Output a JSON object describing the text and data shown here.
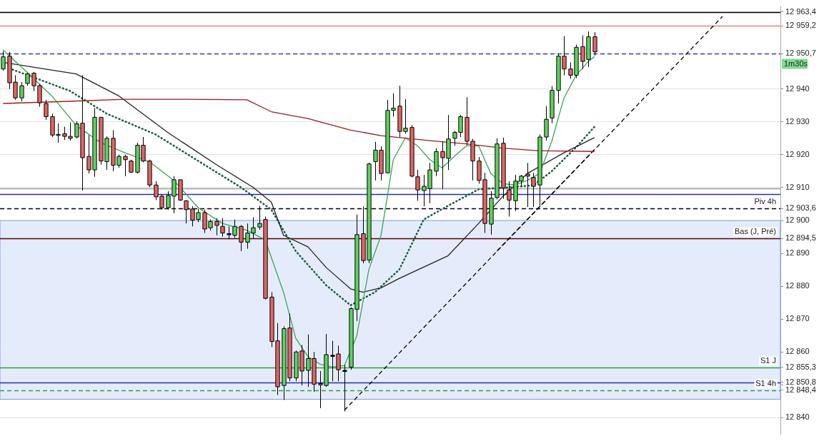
{
  "chart_data": {
    "type": "candlestick",
    "categories": [
      null,
      null,
      null,
      null,
      null,
      null,
      null,
      null,
      null,
      null,
      null,
      null,
      null,
      null,
      null,
      null,
      null,
      null,
      null,
      null,
      null,
      null,
      null,
      null,
      null,
      null,
      null,
      null,
      null,
      null,
      null,
      null,
      null,
      null,
      null,
      null,
      null,
      null,
      null,
      null,
      null,
      null,
      null,
      null,
      null,
      null,
      null,
      null,
      null,
      null,
      null,
      null,
      null,
      null,
      null,
      null,
      null,
      null,
      null,
      null,
      null,
      null,
      null,
      null,
      null,
      null,
      null,
      null,
      null,
      null,
      null,
      null,
      null,
      null,
      null,
      null,
      null,
      null,
      null,
      null,
      null,
      null,
      null,
      null,
      null,
      null,
      null,
      null,
      null,
      null,
      null,
      null,
      null,
      null,
      null,
      null,
      null,
      null,
      null,
      null,
      null,
      null,
      null,
      null,
      null,
      null,
      null,
      null,
      null,
      null,
      null,
      null,
      null,
      null,
      null,
      null,
      null,
      null,
      null,
      null,
      null,
      null,
      null,
      null,
      null,
      null,
      null,
      null
    ],
    "ohlc": [
      [
        12946.1,
        12951.5,
        12945.6,
        12949.8
      ],
      [
        12950.0,
        12951.3,
        12940.0,
        12941.9
      ],
      [
        12942.1,
        12944.2,
        12936.7,
        12937.3
      ],
      [
        12937.3,
        12942.1,
        12936.2,
        12941.0
      ],
      [
        12941.7,
        12945.0,
        12941.0,
        12944.6
      ],
      [
        12944.8,
        12945.2,
        12939.4,
        12941.0
      ],
      [
        12941.0,
        12941.5,
        12934.6,
        12935.8
      ],
      [
        12935.6,
        12936.7,
        12930.6,
        12931.6
      ],
      [
        12931.6,
        12932.5,
        12925.4,
        12926.0
      ],
      [
        12926.0,
        12929.6,
        12923.7,
        12926.2
      ],
      [
        12926.4,
        12928.5,
        12924.5,
        12925.6
      ],
      [
        12925.6,
        12929.8,
        12924.3,
        12925.0
      ],
      [
        12925.4,
        12930.2,
        12925.0,
        12929.4
      ],
      [
        12929.6,
        12944.2,
        12909.1,
        12919.1
      ],
      [
        12919.5,
        12926.0,
        12914.3,
        12915.4
      ],
      [
        12915.4,
        12934.2,
        12913.3,
        12931.4
      ],
      [
        12931.4,
        12931.4,
        12917.0,
        12918.1
      ],
      [
        12917.9,
        12925.6,
        12915.4,
        12925.0
      ],
      [
        12925.0,
        12927.5,
        12915.0,
        12916.8
      ],
      [
        12916.8,
        12920.0,
        12916.0,
        12919.5
      ],
      [
        12919.5,
        12920.0,
        12913.5,
        12918.5
      ],
      [
        12918.1,
        12918.5,
        12914.5,
        12914.7
      ],
      [
        12914.7,
        12923.7,
        12914.3,
        12922.9
      ],
      [
        12922.9,
        12925.4,
        12917.7,
        12918.1
      ],
      [
        12918.1,
        12918.5,
        12910.1,
        12910.8
      ],
      [
        12910.8,
        12912.0,
        12906.2,
        12907.2
      ],
      [
        12907.4,
        12908.0,
        12903.3,
        12903.9
      ],
      [
        12903.9,
        12908.9,
        12903.3,
        12907.6
      ],
      [
        12907.4,
        12913.5,
        12902.2,
        12912.4
      ],
      [
        12912.4,
        12912.4,
        12906.0,
        12906.2
      ],
      [
        12906.0,
        12906.2,
        12899.1,
        12903.3
      ],
      [
        12903.5,
        12904.3,
        12898.2,
        12900.1
      ],
      [
        12900.3,
        12903.5,
        12899.5,
        12902.4
      ],
      [
        12902.4,
        12903.3,
        12896.2,
        12897.4
      ],
      [
        12897.8,
        12900.3,
        12897.0,
        12899.7
      ],
      [
        12899.7,
        12900.7,
        12895.5,
        12898.5
      ],
      [
        12898.2,
        12900.7,
        12895.1,
        12896.2
      ],
      [
        12896.0,
        12898.2,
        12894.3,
        12896.0
      ],
      [
        12895.5,
        12900.3,
        12894.7,
        12898.2
      ],
      [
        12898.2,
        12898.6,
        12890.7,
        12893.4
      ],
      [
        12893.4,
        12899.1,
        12891.4,
        12896.2
      ],
      [
        12896.2,
        12901.0,
        12894.5,
        12897.8
      ],
      [
        12898.0,
        12904.5,
        12897.2,
        12899.1
      ],
      [
        12900.3,
        12901.2,
        12876.0,
        12876.3
      ],
      [
        12876.7,
        12878.2,
        12861.5,
        12863.2
      ],
      [
        12863.4,
        12868.8,
        12846.9,
        12849.4
      ],
      [
        12849.8,
        12867.8,
        12845.4,
        12867.1
      ],
      [
        12867.3,
        12871.7,
        12851.1,
        12852.1
      ],
      [
        12852.1,
        12860.4,
        12851.1,
        12860.0
      ],
      [
        12860.3,
        12862.1,
        12849.8,
        12854.2
      ],
      [
        12854.4,
        12865.3,
        12849.4,
        12858.0
      ],
      [
        12858.0,
        12860.0,
        12847.9,
        12850.2
      ],
      [
        12850.4,
        12854.2,
        12842.9,
        12850.0
      ],
      [
        12849.8,
        12865.5,
        12849.4,
        12859.2
      ],
      [
        12859.0,
        12863.4,
        12851.1,
        12859.0
      ],
      [
        12859.4,
        12861.9,
        12851.1,
        12854.6
      ],
      [
        12854.4,
        12856.1,
        12841.9,
        12854.4
      ],
      [
        12855.4,
        12873.6,
        12854.6,
        12873.2
      ],
      [
        12873.0,
        12901.8,
        12869.4,
        12895.7
      ],
      [
        12896.0,
        12904.3,
        12887.0,
        12887.8
      ],
      [
        12888.0,
        12917.6,
        12887.0,
        12917.2
      ],
      [
        12917.9,
        12923.9,
        12912.2,
        12921.4
      ],
      [
        12921.4,
        12922.5,
        12912.2,
        12914.3
      ],
      [
        12914.5,
        12936.7,
        12914.3,
        12933.5
      ],
      [
        12933.5,
        12938.7,
        12931.6,
        12934.2
      ],
      [
        12934.8,
        12941.0,
        12925.4,
        12927.1
      ],
      [
        12927.1,
        12936.9,
        12926.4,
        12928.1
      ],
      [
        12928.3,
        12929.0,
        12913.1,
        12913.5
      ],
      [
        12913.3,
        12915.4,
        12906.0,
        12909.3
      ],
      [
        12909.1,
        12913.9,
        12904.3,
        12910.4
      ],
      [
        12909.7,
        12917.5,
        12905.3,
        12915.4
      ],
      [
        12915.0,
        12922.0,
        12913.5,
        12921.0
      ],
      [
        12921.0,
        12924.1,
        12909.5,
        12919.1
      ],
      [
        12918.9,
        12932.1,
        12915.4,
        12924.8
      ],
      [
        12925.0,
        12927.3,
        12922.7,
        12926.8
      ],
      [
        12926.8,
        12932.1,
        12925.4,
        12931.6
      ],
      [
        12931.4,
        12937.5,
        12922.9,
        12924.1
      ],
      [
        12924.1,
        12924.8,
        12912.2,
        12918.1
      ],
      [
        12918.1,
        12919.3,
        12911.2,
        12912.2
      ],
      [
        12912.4,
        12914.5,
        12896.2,
        12899.1
      ],
      [
        12898.9,
        12908.9,
        12895.7,
        12906.8
      ],
      [
        12907.0,
        12925.0,
        12906.4,
        12923.3
      ],
      [
        12923.5,
        12925.2,
        12906.6,
        12909.9
      ],
      [
        12909.3,
        12912.0,
        12901.2,
        12906.2
      ],
      [
        12906.0,
        12913.9,
        12902.9,
        12912.0
      ],
      [
        12912.0,
        12913.9,
        12910.4,
        12913.5
      ],
      [
        12914.1,
        12917.5,
        12904.1,
        12913.5
      ],
      [
        12913.1,
        12914.5,
        12904.1,
        12910.4
      ],
      [
        12910.8,
        12926.2,
        12904.5,
        12925.4
      ],
      [
        12925.4,
        12934.8,
        12924.3,
        12930.8
      ],
      [
        12931.2,
        12940.9,
        12929.6,
        12939.6
      ],
      [
        12939.6,
        12950.6,
        12935.6,
        12950.0
      ],
      [
        12950.0,
        12956.1,
        12944.2,
        12946.1
      ],
      [
        12946.1,
        12948.1,
        12943.1,
        12944.2
      ],
      [
        12944.2,
        12953.5,
        12943.3,
        12952.7
      ],
      [
        12952.9,
        12956.3,
        12946.1,
        12948.4
      ],
      [
        12949.0,
        12957.5,
        12946.7,
        12955.9
      ],
      [
        12955.9,
        12957.3,
        12950.2,
        12951.3
      ],
      null,
      null,
      null,
      null,
      null,
      null,
      null,
      null,
      null,
      null,
      null,
      null,
      null,
      null,
      null,
      null,
      null,
      null,
      null,
      null,
      null,
      null,
      null,
      null,
      null,
      null,
      null,
      null,
      null,
      null
    ],
    "colors": [
      "#5fd35f",
      "#e06666",
      "#e06666",
      "#5fd35f",
      "#5fd35f",
      "#e06666",
      "#e06666",
      "#e06666",
      "#e06666",
      "#5fd35f",
      "#e06666",
      "#e06666",
      "#5fd35f",
      "#e06666",
      "#e06666",
      "#5fd35f",
      "#e06666",
      "#5fd35f",
      "#e06666",
      "#5fd35f",
      "#e06666",
      "#e06666",
      "#5fd35f",
      "#e06666",
      "#e06666",
      "#e06666",
      "#e06666",
      "#5fd35f",
      "#5fd35f",
      "#e06666",
      "#e06666",
      "#e06666",
      "#5fd35f",
      "#e06666",
      "#5fd35f",
      "#e06666",
      "#e06666",
      "#000000",
      "#5fd35f",
      "#e06666",
      "#5fd35f",
      "#5fd35f",
      "#5fd35f",
      "#e06666",
      "#e06666",
      "#e06666",
      "#5fd35f",
      "#e06666",
      "#5fd35f",
      "#e06666",
      "#5fd35f",
      "#e06666",
      "#e06666",
      "#5fd35f",
      "#000000",
      "#e06666",
      "#000000",
      "#5fd35f",
      "#5fd35f",
      "#e06666",
      "#5fd35f",
      "#5fd35f",
      "#e06666",
      "#5fd35f",
      "#5fd35f",
      "#e06666",
      "#5fd35f",
      "#e06666",
      "#e06666",
      "#5fd35f",
      "#5fd35f",
      "#5fd35f",
      "#e06666",
      "#5fd35f",
      "#5fd35f",
      "#5fd35f",
      "#e06666",
      "#e06666",
      "#e06666",
      "#e06666",
      "#5fd35f",
      "#5fd35f",
      "#e06666",
      "#e06666",
      "#5fd35f",
      "#5fd35f",
      "#e06666",
      "#e06666",
      "#5fd35f",
      "#5fd35f",
      "#5fd35f",
      "#5fd35f",
      "#e06666",
      "#e06666",
      "#5fd35f",
      "#e06666",
      "#5fd35f",
      "#e06666",
      null,
      null,
      null,
      null,
      null,
      null,
      null,
      null,
      null,
      null,
      null,
      null,
      null,
      null,
      null,
      null,
      null,
      null,
      null,
      null,
      null,
      null,
      null,
      null,
      null,
      null,
      null,
      null,
      null,
      null
    ],
    "series": [
      {
        "type": "line",
        "color": "#9b1c1c",
        "values": [
          12935.6,
          null,
          null,
          null,
          null,
          null,
          null,
          null,
          null,
          null,
          12936.2,
          null,
          null,
          null,
          null,
          null,
          null,
          null,
          null,
          null,
          12936.9,
          null,
          null,
          null,
          null,
          null,
          null,
          null,
          null,
          null,
          12936.9,
          null,
          null,
          null,
          null,
          null,
          null,
          null,
          null,
          null,
          12936.7,
          null,
          null,
          null,
          12933.1,
          null,
          null,
          null,
          null,
          null,
          12931.0,
          null,
          null,
          null,
          null,
          null,
          null,
          12927.5,
          null,
          null,
          null,
          null,
          12925.8,
          null,
          null,
          null,
          null,
          null,
          null,
          null,
          12924.3,
          null,
          null,
          null,
          null,
          null,
          12923.3,
          null,
          null,
          null,
          null,
          null,
          12922.0,
          null,
          null,
          null,
          null,
          null,
          12921.2,
          null,
          null,
          null,
          null,
          null,
          null,
          null,
          null,
          12921.0,
          null,
          null,
          null,
          null,
          null,
          null,
          null,
          null,
          null,
          null,
          null,
          null,
          null,
          null,
          null,
          null,
          null,
          null,
          null,
          null,
          null,
          null,
          null,
          null,
          null,
          null,
          null,
          null,
          null,
          null
        ]
      },
      {
        "type": "line",
        "color": "#3aa655",
        "values": [
          12951.9,
          null,
          null,
          null,
          12945.0,
          null,
          null,
          null,
          12937.9,
          null,
          null,
          null,
          12928.9,
          null,
          null,
          null,
          12923.7,
          null,
          null,
          null,
          12920.6,
          null,
          null,
          null,
          12917.9,
          null,
          null,
          null,
          12912.2,
          null,
          null,
          null,
          12903.9,
          null,
          null,
          null,
          12899.1,
          null,
          null,
          null,
          12897.0,
          null,
          null,
          12894.1,
          null,
          null,
          12878.2,
          null,
          12864.2,
          null,
          12858.6,
          null,
          12856.3,
          null,
          12855.4,
          null,
          12855.9,
          null,
          12864.8,
          null,
          12885.1,
          null,
          12895.5,
          null,
          12918.5,
          null,
          12925.2,
          null,
          12922.7,
          null,
          12918.5,
          null,
          12916.0,
          null,
          12919.5,
          null,
          12922.7,
          null,
          12922.7,
          null,
          12914.3,
          null,
          12911.2,
          null,
          12910.8,
          null,
          12912.2,
          null,
          12914.3,
          null,
          12924.1,
          null,
          12937.3,
          null,
          12944.2,
          null,
          12948.4,
          12949.8,
          null,
          null,
          null,
          null,
          null,
          null,
          null,
          null,
          null,
          null,
          null,
          null,
          null,
          null,
          null,
          null,
          null,
          null,
          null,
          null,
          null,
          null,
          null,
          null,
          null,
          null,
          null,
          null,
          null,
          null
        ]
      },
      {
        "type": "line",
        "color": "#222222",
        "values": [
          12948.1,
          null,
          null,
          null,
          null,
          null,
          null,
          null,
          null,
          null,
          null,
          null,
          12944.6,
          null,
          null,
          null,
          null,
          null,
          null,
          12937.9,
          null,
          null,
          null,
          null,
          null,
          null,
          null,
          12926.8,
          null,
          null,
          null,
          null,
          null,
          null,
          null,
          12917.0,
          null,
          null,
          null,
          null,
          null,
          12910.1,
          null,
          null,
          12905.6,
          null,
          12895.5,
          null,
          null,
          null,
          12892.0,
          null,
          null,
          12885.7,
          null,
          null,
          null,
          12879.2,
          null,
          12878.2,
          null,
          null,
          12879.5,
          null,
          null,
          12882.4,
          null,
          null,
          null,
          null,
          null,
          null,
          null,
          12889.3,
          null,
          null,
          null,
          null,
          12899.1,
          null,
          null,
          null,
          12907.4,
          null,
          null,
          null,
          12914.3,
          null,
          null,
          null,
          null,
          null,
          12920.6,
          null,
          null,
          null,
          null,
          12925.2,
          null,
          null,
          null,
          null,
          null,
          null,
          null,
          null,
          null,
          null,
          null,
          null,
          null,
          null,
          null,
          null,
          null,
          null,
          null,
          null,
          null,
          null,
          null,
          null,
          null,
          null,
          null,
          null,
          null,
          null
        ]
      },
      {
        "type": "line",
        "color": "#1f5c3a",
        "line_style": "dotted",
        "values": [
          null,
          12946.3,
          null,
          null,
          null,
          null,
          null,
          null,
          null,
          null,
          null,
          12939.4,
          null,
          null,
          null,
          null,
          null,
          12932.5,
          null,
          null,
          null,
          null,
          null,
          null,
          null,
          12926.2,
          null,
          null,
          null,
          null,
          null,
          null,
          null,
          12917.0,
          null,
          null,
          null,
          null,
          null,
          12910.1,
          null,
          null,
          null,
          null,
          12903.3,
          null,
          null,
          null,
          12890.7,
          null,
          null,
          null,
          null,
          12880.3,
          null,
          null,
          null,
          12874.2,
          null,
          null,
          null,
          12878.2,
          null,
          null,
          null,
          12885.1,
          null,
          null,
          null,
          12900.3,
          null,
          null,
          null,
          12904.5,
          null,
          null,
          null,
          null,
          12909.5,
          null,
          null,
          null,
          null,
          12910.1,
          null,
          null,
          null,
          12910.7,
          null,
          null,
          12915.0,
          null,
          null,
          null,
          12922.3,
          null,
          null,
          12928.5,
          null,
          null,
          null,
          null,
          null,
          null,
          null,
          null,
          null,
          null,
          null,
          null,
          null,
          null,
          null,
          null,
          null,
          null,
          null,
          null,
          null,
          null,
          null,
          null,
          null,
          null,
          null,
          null,
          null,
          null
        ]
      },
      {
        "type": "line",
        "color": "#000000",
        "line_style": "dashed",
        "values": [
          null,
          null,
          null,
          null,
          null,
          null,
          null,
          null,
          null,
          null,
          null,
          null,
          null,
          null,
          null,
          null,
          null,
          null,
          null,
          null,
          null,
          null,
          null,
          null,
          null,
          null,
          null,
          null,
          null,
          null,
          null,
          null,
          null,
          null,
          null,
          null,
          null,
          null,
          null,
          null,
          null,
          null,
          null,
          null,
          null,
          null,
          null,
          null,
          null,
          null,
          null,
          null,
          null,
          null,
          null,
          null,
          12842.3,
          null,
          null,
          null,
          null,
          null,
          null,
          null,
          null,
          null,
          null,
          null,
          null,
          null,
          null,
          null,
          null,
          null,
          null,
          null,
          null,
          null,
          null,
          null,
          null,
          null,
          null,
          null,
          null,
          null,
          null,
          null,
          null,
          null,
          null,
          null,
          null,
          null,
          null,
          null,
          null,
          null,
          null,
          null,
          null,
          null,
          null,
          null,
          null,
          null,
          null,
          null,
          null,
          null,
          null,
          null,
          null,
          null,
          null,
          null,
          null,
          null,
          12962.1,
          null,
          null,
          null,
          null,
          null,
          null,
          null,
          null,
          null
        ]
      },
      {
        "type": "line",
        "color": "#000000",
        "line_style": "dashed",
        "values": [
          null,
          null,
          null,
          null,
          null,
          null,
          null,
          null,
          null,
          null,
          null,
          null,
          null,
          null,
          null,
          null,
          null,
          null,
          null,
          null,
          null,
          null,
          null,
          null,
          null,
          null,
          null,
          null,
          null,
          null,
          null,
          null,
          null,
          null,
          null,
          null,
          null,
          null,
          null,
          null,
          null,
          null,
          null,
          null,
          null,
          null,
          null,
          null,
          null,
          null,
          null,
          null,
          null,
          null,
          null,
          null,
          null,
          null,
          null,
          null,
          null,
          null,
          null,
          null,
          null,
          null,
          null,
          null,
          null,
          null,
          null,
          null,
          null,
          null,
          null,
          null,
          null,
          null,
          null,
          null,
          null,
          12890.7,
          null,
          null,
          null,
          null,
          null,
          null,
          null,
          null,
          null,
          null,
          null,
          null,
          null,
          null,
          null,
          12921.6,
          null,
          null,
          null,
          null,
          null,
          null,
          null,
          null,
          null,
          null,
          null,
          null,
          null,
          null,
          null,
          null,
          null,
          null,
          null,
          null,
          null,
          null,
          null,
          null,
          null,
          null,
          null,
          null,
          null,
          null
        ]
      }
    ],
    "ylim": [
      12835,
      12965
    ],
    "yticks": [
      {
        "value": 12848.4,
        "label": "12 848,4"
      },
      {
        "value": 12850.8,
        "label": "12 850,8"
      },
      {
        "value": 12855.3,
        "label": "12 855,3"
      },
      {
        "value": 12894.5,
        "label": "12 894,5"
      },
      {
        "value": 12903.6,
        "label": "12 903,6"
      },
      {
        "value": 12950.7,
        "label": "12 950,7"
      },
      {
        "value": 12959.2,
        "label": "12 959,2"
      },
      {
        "value": 12963.4,
        "label": "12 963,4"
      },
      {
        "value": 12840,
        "label": "12 840"
      },
      {
        "value": 12850,
        "label": null
      },
      {
        "value": 12860,
        "label": "12 860"
      },
      {
        "value": 12870,
        "label": "12 870"
      },
      {
        "value": 12880,
        "label": "12 880"
      },
      {
        "value": 12890,
        "label": "12 890"
      },
      {
        "value": 12900,
        "label": "12 900"
      },
      {
        "value": 12910,
        "label": "12 910"
      },
      {
        "value": 12920,
        "label": "12 920"
      },
      {
        "value": 12930,
        "label": "12 930"
      },
      {
        "value": 12940,
        "label": "12 940"
      }
    ],
    "bands": [
      {
        "axis": "y",
        "from": 12845.6,
        "to": 12900,
        "color": "#e4ecfb"
      }
    ],
    "ref_lines": [
      {
        "axis": "y",
        "value": 12963.4,
        "color": "#000000"
      },
      {
        "axis": "y",
        "value": 12959.2,
        "color": "#f08080"
      },
      {
        "axis": "y",
        "value": 12950.7,
        "color": "#3a3aa0",
        "line_style": "dashed"
      },
      {
        "axis": "y",
        "value": 12909.8,
        "color": "#9a9a9a"
      },
      {
        "axis": "y",
        "value": 12908.1,
        "color": "#1f2fbf"
      },
      {
        "axis": "y",
        "value": 12903.6,
        "color": "#000000",
        "line_style": "dashed",
        "label": "Piv 4h"
      },
      {
        "axis": "y",
        "value": 12894.5,
        "color": "#5a0000",
        "label": "Bas (J, Pré)"
      },
      {
        "axis": "y",
        "value": 12855.3,
        "color": "#3a9a3a",
        "label": "S1 J"
      },
      {
        "axis": "y",
        "value": 12850.8,
        "color": "#1f2fbf"
      },
      {
        "axis": "y",
        "value": 12848.4,
        "color": "#3a9a3a",
        "line_style": "dashed",
        "label": "S1 4h"
      }
    ],
    "annotations": [
      "1m30s"
    ],
    "grid": "y",
    "legend": false,
    "tick_labels": "y",
    "marker": "none"
  }
}
